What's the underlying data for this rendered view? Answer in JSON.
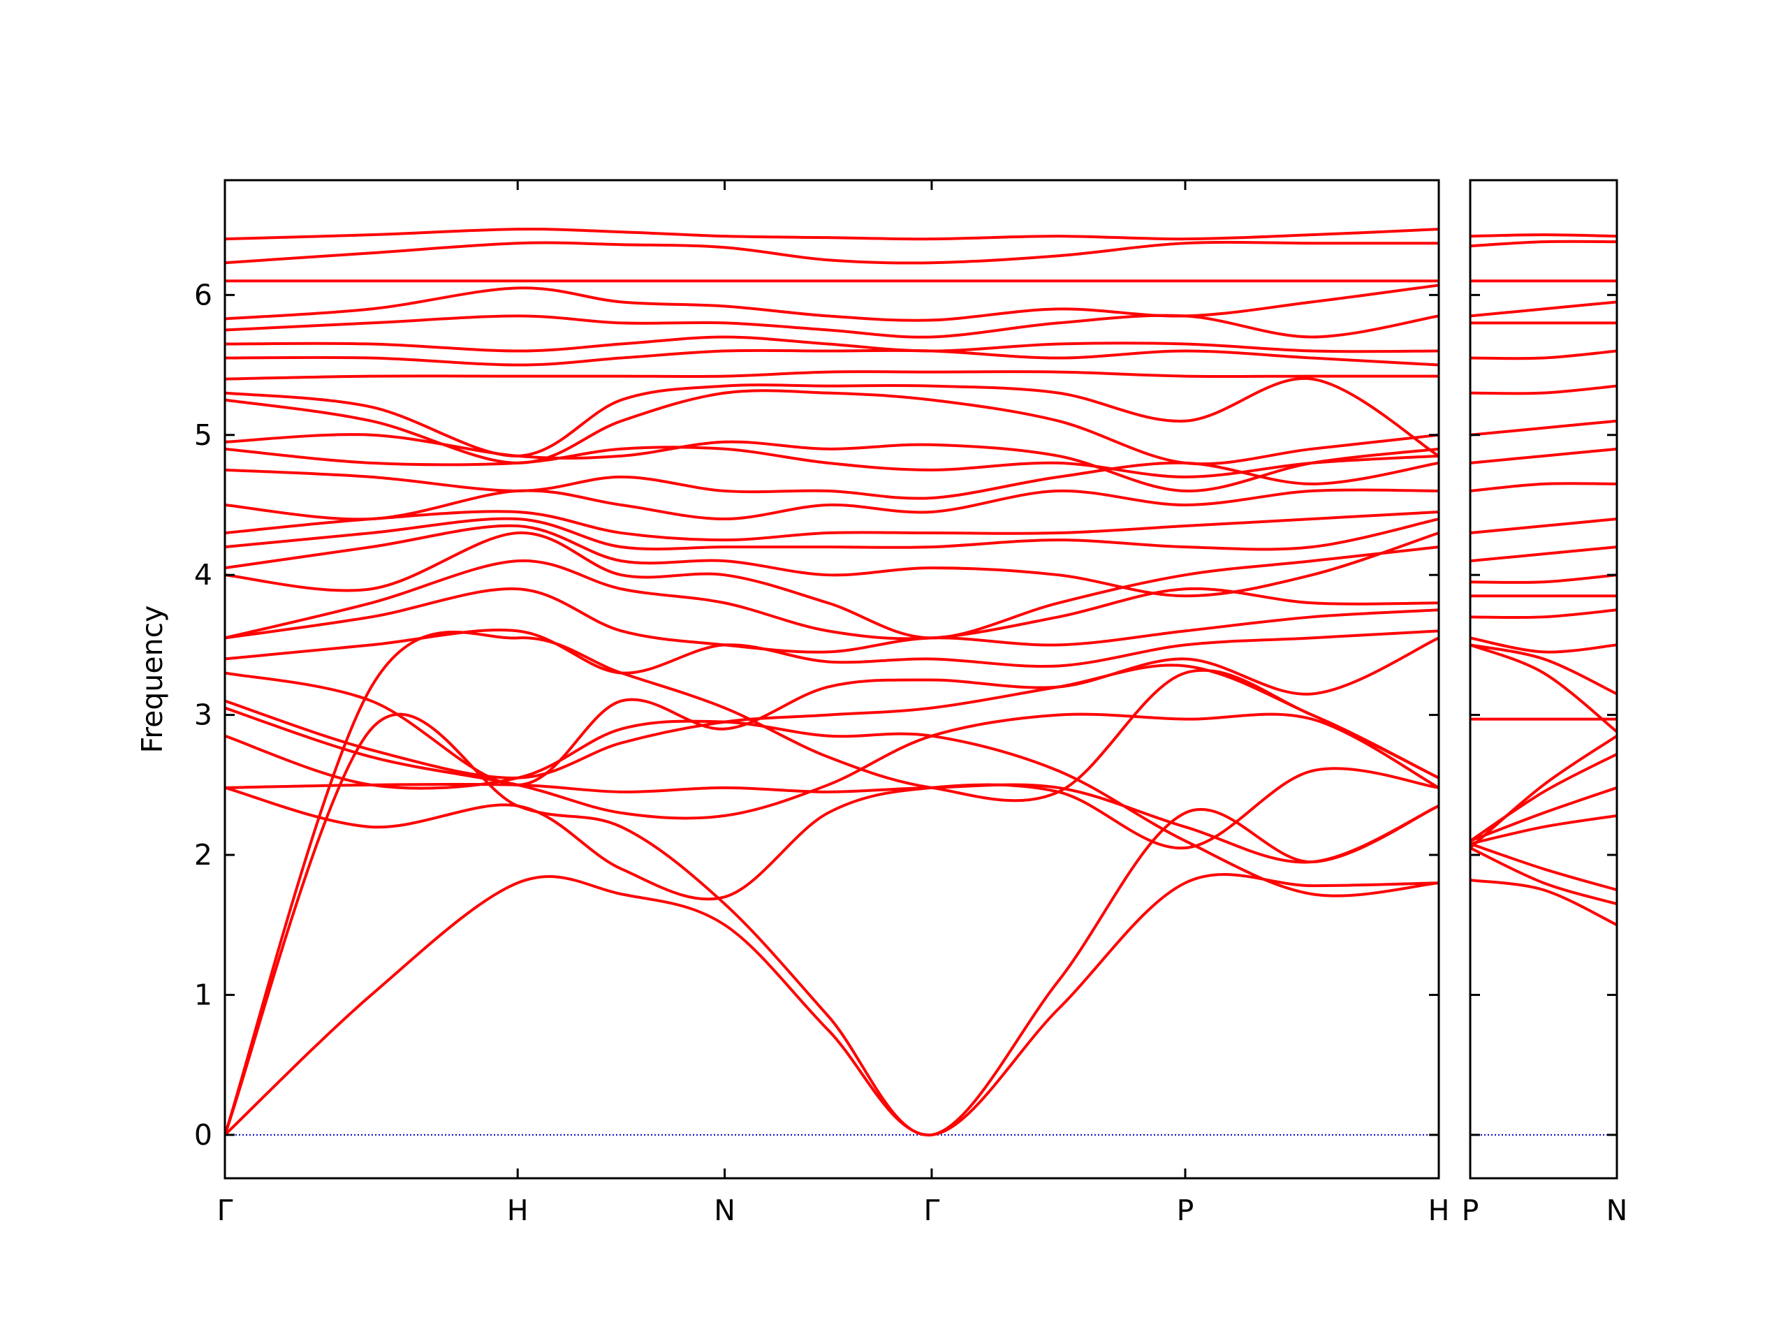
{
  "chart_data": [
    {
      "type": "line",
      "ylabel": "Frequency",
      "color": "#ff0000",
      "x": [
        0,
        0.5,
        1,
        1.354,
        1.707,
        2.06,
        2.414,
        2.847,
        3.28,
        3.713,
        4.146
      ],
      "xlim": [
        0,
        4.146
      ],
      "xticks": [
        {
          "value": 0,
          "label": "Γ"
        },
        {
          "value": 1,
          "label": "H"
        },
        {
          "value": 1.707,
          "label": "N"
        },
        {
          "value": 2.414,
          "label": "Γ"
        },
        {
          "value": 3.28,
          "label": "P"
        },
        {
          "value": 4.146,
          "label": "H"
        }
      ],
      "ylim": [
        -0.31,
        6.82
      ],
      "yticks": [
        0,
        1,
        2,
        3,
        4,
        5,
        6
      ],
      "hline": {
        "value": 0,
        "color": "#0000cc",
        "style": "dotted"
      },
      "series": [
        {
          "values": [
            0,
            1.0,
            1.8,
            1.72,
            1.5,
            0.75,
            0,
            0.9,
            1.8,
            1.78,
            1.8
          ]
        },
        {
          "values": [
            0,
            2.9,
            2.35,
            2.2,
            1.65,
            0.85,
            0,
            1.1,
            2.3,
            1.95,
            2.35
          ]
        },
        {
          "values": [
            0,
            3.2,
            3.55,
            3.3,
            3.05,
            2.7,
            2.48,
            2.45,
            3.3,
            3.0,
            2.55
          ]
        },
        {
          "values": [
            2.48,
            2.2,
            2.35,
            1.9,
            1.7,
            2.3,
            2.48,
            2.45,
            2.05,
            2.6,
            2.48
          ]
        },
        {
          "values": [
            2.48,
            2.5,
            2.5,
            2.45,
            2.48,
            2.45,
            2.48,
            2.48,
            2.2,
            1.95,
            2.35
          ]
        },
        {
          "values": [
            2.85,
            2.5,
            2.55,
            2.9,
            2.95,
            2.85,
            2.85,
            2.6,
            2.1,
            1.72,
            1.8
          ]
        },
        {
          "values": [
            3.05,
            2.7,
            2.5,
            2.3,
            2.28,
            2.5,
            2.85,
            3.0,
            2.97,
            2.97,
            2.48
          ]
        },
        {
          "values": [
            3.1,
            2.75,
            2.55,
            2.8,
            2.95,
            3.0,
            3.05,
            3.2,
            3.35,
            3.0,
            2.55
          ]
        },
        {
          "values": [
            3.3,
            3.1,
            2.5,
            3.1,
            2.9,
            3.2,
            3.25,
            3.2,
            3.4,
            3.15,
            3.55
          ]
        },
        {
          "values": [
            3.4,
            3.5,
            3.6,
            3.3,
            3.5,
            3.38,
            3.4,
            3.35,
            3.5,
            3.55,
            3.6
          ]
        },
        {
          "values": [
            3.55,
            3.7,
            3.9,
            3.6,
            3.5,
            3.45,
            3.55,
            3.5,
            3.6,
            3.7,
            3.75
          ]
        },
        {
          "values": [
            3.55,
            3.8,
            4.1,
            3.9,
            3.8,
            3.6,
            3.55,
            3.7,
            3.9,
            3.8,
            3.8
          ]
        },
        {
          "values": [
            4.0,
            3.9,
            4.3,
            4.0,
            4.0,
            3.8,
            3.55,
            3.8,
            4.0,
            4.1,
            4.2
          ]
        },
        {
          "values": [
            4.05,
            4.2,
            4.35,
            4.1,
            4.1,
            4.0,
            4.05,
            4.0,
            3.85,
            4.0,
            4.3
          ]
        },
        {
          "values": [
            4.2,
            4.3,
            4.4,
            4.2,
            4.2,
            4.2,
            4.2,
            4.25,
            4.2,
            4.2,
            4.4
          ]
        },
        {
          "values": [
            4.3,
            4.4,
            4.45,
            4.3,
            4.25,
            4.3,
            4.3,
            4.3,
            4.35,
            4.4,
            4.45
          ]
        },
        {
          "values": [
            4.5,
            4.4,
            4.6,
            4.5,
            4.4,
            4.5,
            4.45,
            4.6,
            4.5,
            4.6,
            4.6
          ]
        },
        {
          "values": [
            4.75,
            4.7,
            4.6,
            4.7,
            4.6,
            4.6,
            4.55,
            4.7,
            4.8,
            4.65,
            4.8
          ]
        },
        {
          "values": [
            4.9,
            4.8,
            4.8,
            4.9,
            4.9,
            4.8,
            4.75,
            4.8,
            4.7,
            4.8,
            4.85
          ]
        },
        {
          "values": [
            4.95,
            5.0,
            4.85,
            4.85,
            4.95,
            4.9,
            4.93,
            4.85,
            4.6,
            4.8,
            4.9
          ]
        },
        {
          "values": [
            5.25,
            5.1,
            4.8,
            5.1,
            5.3,
            5.3,
            5.25,
            5.1,
            4.8,
            4.9,
            5.0
          ]
        },
        {
          "values": [
            5.3,
            5.2,
            4.85,
            5.25,
            5.35,
            5.35,
            5.35,
            5.3,
            5.1,
            5.4,
            4.85
          ]
        },
        {
          "values": [
            5.4,
            5.42,
            5.42,
            5.42,
            5.42,
            5.45,
            5.45,
            5.45,
            5.42,
            5.42,
            5.42
          ]
        },
        {
          "values": [
            5.55,
            5.55,
            5.5,
            5.55,
            5.6,
            5.6,
            5.6,
            5.55,
            5.6,
            5.55,
            5.5
          ]
        },
        {
          "values": [
            5.65,
            5.65,
            5.6,
            5.65,
            5.7,
            5.65,
            5.6,
            5.65,
            5.65,
            5.6,
            5.6
          ]
        },
        {
          "values": [
            5.75,
            5.8,
            5.85,
            5.8,
            5.8,
            5.75,
            5.7,
            5.8,
            5.85,
            5.7,
            5.85
          ]
        },
        {
          "values": [
            5.83,
            5.9,
            6.05,
            5.95,
            5.92,
            5.85,
            5.82,
            5.9,
            5.85,
            5.95,
            6.07
          ]
        },
        {
          "values": [
            6.1,
            6.1,
            6.1,
            6.1,
            6.1,
            6.1,
            6.1,
            6.1,
            6.1,
            6.1,
            6.1
          ]
        },
        {
          "values": [
            6.23,
            6.3,
            6.37,
            6.36,
            6.34,
            6.25,
            6.23,
            6.28,
            6.37,
            6.37,
            6.37
          ]
        },
        {
          "values": [
            6.4,
            6.43,
            6.47,
            6.45,
            6.42,
            6.41,
            6.4,
            6.42,
            6.4,
            6.43,
            6.47
          ]
        }
      ]
    },
    {
      "type": "line",
      "color": "#ff0000",
      "x": [
        0,
        0.25,
        0.5
      ],
      "xlim": [
        0,
        0.5
      ],
      "xticks": [
        {
          "value": 0,
          "label": "P"
        },
        {
          "value": 0.5,
          "label": "N"
        }
      ],
      "ylim": [
        -0.31,
        6.82
      ],
      "yticks": [
        0,
        1,
        2,
        3,
        4,
        5,
        6
      ],
      "hline": {
        "value": 0,
        "color": "#0000cc",
        "style": "dotted"
      },
      "series": [
        {
          "values": [
            1.82,
            1.75,
            1.5
          ]
        },
        {
          "values": [
            2.05,
            1.8,
            1.65
          ]
        },
        {
          "values": [
            2.08,
            1.9,
            1.75
          ]
        },
        {
          "values": [
            2.08,
            2.2,
            2.28
          ]
        },
        {
          "values": [
            2.1,
            2.3,
            2.48
          ]
        },
        {
          "values": [
            2.1,
            2.45,
            2.72
          ]
        },
        {
          "values": [
            2.05,
            2.5,
            2.85
          ]
        },
        {
          "values": [
            2.97,
            2.97,
            2.97
          ]
        },
        {
          "values": [
            3.5,
            3.3,
            2.88
          ]
        },
        {
          "values": [
            3.5,
            3.4,
            3.15
          ]
        },
        {
          "values": [
            3.55,
            3.45,
            3.5
          ]
        },
        {
          "values": [
            3.7,
            3.7,
            3.75
          ]
        },
        {
          "values": [
            3.85,
            3.85,
            3.85
          ]
        },
        {
          "values": [
            3.95,
            3.95,
            4.0
          ]
        },
        {
          "values": [
            4.1,
            4.15,
            4.2
          ]
        },
        {
          "values": [
            4.3,
            4.35,
            4.4
          ]
        },
        {
          "values": [
            4.6,
            4.65,
            4.65
          ]
        },
        {
          "values": [
            4.8,
            4.85,
            4.9
          ]
        },
        {
          "values": [
            5.0,
            5.05,
            5.1
          ]
        },
        {
          "values": [
            5.3,
            5.3,
            5.35
          ]
        },
        {
          "values": [
            5.55,
            5.55,
            5.6
          ]
        },
        {
          "values": [
            5.8,
            5.8,
            5.8
          ]
        },
        {
          "values": [
            5.85,
            5.9,
            5.95
          ]
        },
        {
          "values": [
            6.1,
            6.1,
            6.1
          ]
        },
        {
          "values": [
            6.35,
            6.38,
            6.38
          ]
        },
        {
          "values": [
            6.42,
            6.43,
            6.42
          ]
        }
      ]
    }
  ]
}
